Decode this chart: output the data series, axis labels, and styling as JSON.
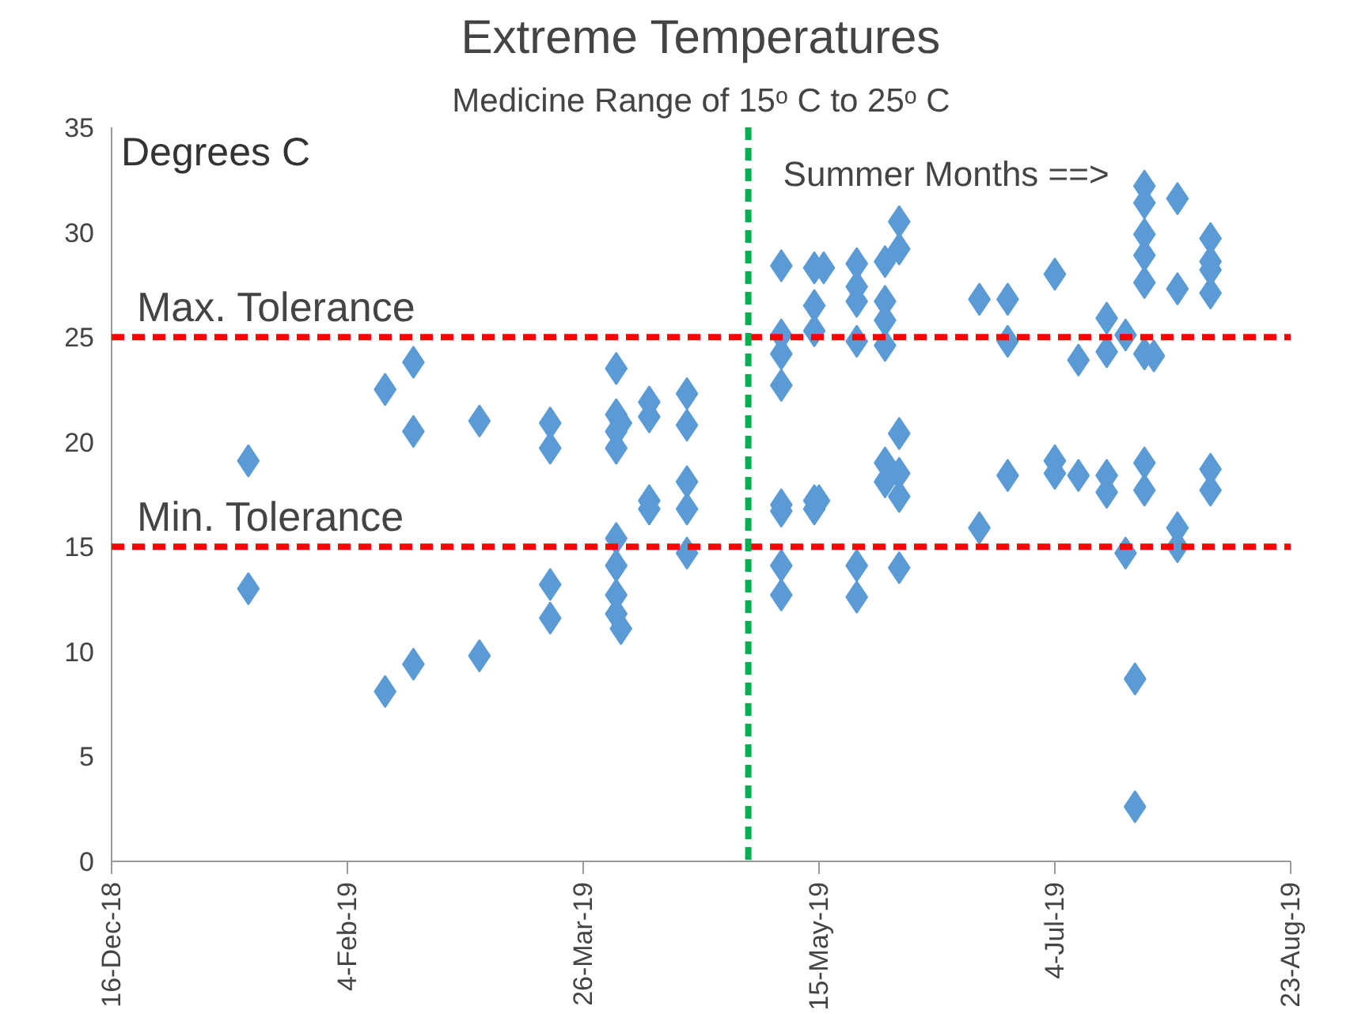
{
  "chart_data": {
    "type": "scatter",
    "title": "Extreme Temperatures",
    "subtitle": "Medicine Range of 15ᵒ C to 25ᵒ C",
    "ylabel": "Degrees C",
    "marker": "diamond",
    "grid": false,
    "xlim": [
      "2018-12-16",
      "2019-08-23"
    ],
    "xticks": [
      {
        "value": "2018-12-16",
        "label": "16-Dec-18"
      },
      {
        "value": "2019-02-04",
        "label": "4-Feb-19"
      },
      {
        "value": "2019-03-26",
        "label": "26-Mar-19"
      },
      {
        "value": "2019-05-15",
        "label": "15-May-19"
      },
      {
        "value": "2019-07-04",
        "label": "4-Jul-19"
      },
      {
        "value": "2019-08-23",
        "label": "23-Aug-19"
      }
    ],
    "ylim": [
      0,
      35
    ],
    "yticks": [
      0,
      5,
      10,
      15,
      20,
      25,
      30,
      35
    ],
    "ref_lines": [
      {
        "axis": "y",
        "value": 25,
        "label": "Max. Tolerance",
        "color": "#ff0000",
        "line_style": "dashed"
      },
      {
        "axis": "y",
        "value": 15,
        "label": "Min. Tolerance",
        "color": "#ff0000",
        "line_style": "dashed"
      },
      {
        "axis": "x",
        "value": "2019-04-30",
        "label": "Summer Months ==>",
        "color": "#00b050",
        "line_style": "dashed"
      }
    ],
    "series": [
      {
        "color": "#5b9bd5",
        "x": [
          "2019-01-14",
          "2019-01-14",
          "2019-02-12",
          "2019-02-18",
          "2019-02-18",
          "2019-03-04",
          "2019-03-19",
          "2019-03-19",
          "2019-04-02",
          "2019-04-02",
          "2019-04-03",
          "2019-04-02",
          "2019-04-02",
          "2019-04-09",
          "2019-04-09",
          "2019-04-17",
          "2019-04-17",
          "2019-04-09",
          "2019-04-09",
          "2019-04-17",
          "2019-04-17",
          "2019-04-17",
          "2019-04-02",
          "2019-04-02",
          "2019-04-02",
          "2019-04-02",
          "2019-04-03",
          "2019-03-19",
          "2019-03-19",
          "2019-02-12",
          "2019-02-18",
          "2019-03-04",
          "2019-05-07",
          "2019-05-07",
          "2019-05-07",
          "2019-05-07",
          "2019-05-07",
          "2019-05-07",
          "2019-05-07",
          "2019-05-07",
          "2019-05-14",
          "2019-05-16",
          "2019-05-14",
          "2019-05-14",
          "2019-05-14",
          "2019-05-15",
          "2019-05-14",
          "2019-05-23",
          "2019-05-23",
          "2019-05-23",
          "2019-05-23",
          "2019-05-23",
          "2019-05-23",
          "2019-05-29",
          "2019-05-29",
          "2019-05-29",
          "2019-05-29",
          "2019-06-01",
          "2019-06-01",
          "2019-06-01",
          "2019-05-29",
          "2019-05-29",
          "2019-06-01",
          "2019-06-01",
          "2019-06-01",
          "2019-06-18",
          "2019-06-18",
          "2019-06-24",
          "2019-06-24",
          "2019-06-24",
          "2019-07-04",
          "2019-07-04",
          "2019-07-04",
          "2019-07-09",
          "2019-07-09",
          "2019-07-15",
          "2019-07-15",
          "2019-07-15",
          "2019-07-15",
          "2019-07-19",
          "2019-07-19",
          "2019-07-21",
          "2019-07-21",
          "2019-07-23",
          "2019-07-23",
          "2019-07-23",
          "2019-07-23",
          "2019-07-23",
          "2019-07-23",
          "2019-07-25",
          "2019-07-23",
          "2019-07-23",
          "2019-07-30",
          "2019-07-30",
          "2019-07-30",
          "2019-07-30",
          "2019-08-06",
          "2019-08-06",
          "2019-08-06",
          "2019-08-06",
          "2019-08-06",
          "2019-08-06"
        ],
        "values": [
          19.1,
          13.0,
          22.5,
          23.8,
          20.5,
          21.0,
          20.9,
          19.7,
          23.5,
          21.3,
          20.9,
          20.5,
          19.7,
          21.9,
          21.2,
          22.3,
          20.8,
          17.2,
          16.8,
          18.1,
          16.8,
          14.7,
          15.4,
          14.1,
          12.7,
          11.8,
          11.1,
          13.2,
          11.6,
          8.1,
          9.4,
          9.8,
          28.4,
          25.1,
          24.2,
          22.7,
          17.0,
          16.7,
          14.1,
          12.7,
          28.3,
          28.3,
          26.5,
          25.3,
          17.2,
          17.2,
          16.8,
          28.5,
          27.4,
          26.7,
          24.8,
          14.1,
          12.6,
          28.6,
          26.7,
          25.8,
          24.6,
          30.5,
          29.2,
          20.4,
          19.0,
          18.1,
          18.5,
          17.4,
          14.0,
          26.8,
          15.9,
          26.8,
          24.8,
          18.4,
          28.0,
          19.1,
          18.5,
          23.9,
          18.4,
          25.9,
          24.3,
          18.4,
          17.6,
          25.1,
          14.7,
          8.7,
          2.6,
          32.2,
          31.4,
          29.9,
          28.9,
          27.6,
          24.2,
          24.1,
          19.0,
          17.7,
          31.6,
          27.3,
          15.9,
          15.0,
          29.7,
          28.6,
          28.2,
          27.1,
          18.7,
          17.7
        ]
      }
    ]
  }
}
